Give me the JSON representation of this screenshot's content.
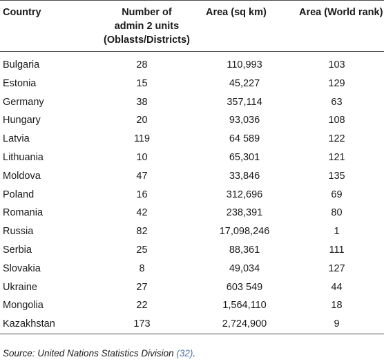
{
  "table": {
    "headers": {
      "country": "Country",
      "units_line1": "Number of",
      "units_line2": "admin 2 units",
      "units_line3": "(Oblasts/Districts)",
      "area": "Area (sq km)",
      "rank": "Area (World rank)"
    },
    "rows": [
      {
        "country": "Bulgaria",
        "units": "28",
        "area": "110,993",
        "rank": "103"
      },
      {
        "country": "Estonia",
        "units": "15",
        "area": "45,227",
        "rank": "129"
      },
      {
        "country": "Germany",
        "units": "38",
        "area": "357,114",
        "rank": "63"
      },
      {
        "country": "Hungary",
        "units": "20",
        "area": "93,036",
        "rank": "108"
      },
      {
        "country": "Latvia",
        "units": "119",
        "area": "64 589",
        "rank": "122"
      },
      {
        "country": "Lithuania",
        "units": "10",
        "area": "65,301",
        "rank": "121"
      },
      {
        "country": "Moldova",
        "units": "47",
        "area": "33,846",
        "rank": "135"
      },
      {
        "country": "Poland",
        "units": "16",
        "area": "312,696",
        "rank": "69"
      },
      {
        "country": "Romania",
        "units": "42",
        "area": "238,391",
        "rank": "80"
      },
      {
        "country": "Russia",
        "units": "82",
        "area": "17,098,246",
        "rank": "1"
      },
      {
        "country": "Serbia",
        "units": "25",
        "area": "88,361",
        "rank": "111"
      },
      {
        "country": "Slovakia",
        "units": "8",
        "area": "49,034",
        "rank": "127"
      },
      {
        "country": "Ukraine",
        "units": "27",
        "area": "603 549",
        "rank": "44"
      },
      {
        "country": "Mongolia",
        "units": "22",
        "area": "1,564,110",
        "rank": "18"
      },
      {
        "country": "Kazakhstan",
        "units": "173",
        "area": "2,724,900",
        "rank": "9"
      }
    ]
  },
  "source": {
    "prefix": "Source: United Nations Statistics Division ",
    "ref": "(32)",
    "suffix": "."
  }
}
